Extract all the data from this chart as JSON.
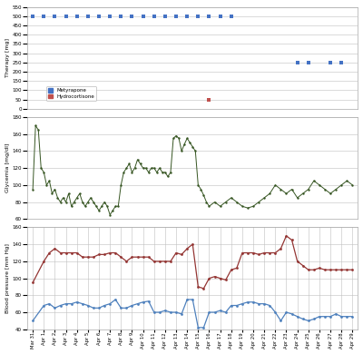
{
  "dates": [
    "Mar 31",
    "Apr 1",
    "Apr 2",
    "Apr 3",
    "Apr 4",
    "Apr 5",
    "Apr 6",
    "Apr 7",
    "Apr 8",
    "Apr 9",
    "Apr 10",
    "Apr 11",
    "Apr 12",
    "Apr 13",
    "Apr 14",
    "Apr 15",
    "Apr 16",
    "Apr 17",
    "Apr 18",
    "Apr 19",
    "Apr 20",
    "Apr 21",
    "Apr 22",
    "Apr 23",
    "Apr 24",
    "Apr 25",
    "Apr 26",
    "Apr 27",
    "Apr 28",
    "Apr 29"
  ],
  "metyrapone_x": [
    0,
    1,
    2,
    3,
    4,
    5,
    6,
    7,
    8,
    9,
    10,
    11,
    12,
    13,
    14,
    15,
    16,
    17,
    18,
    24,
    25,
    27,
    28
  ],
  "metyrapone_y": [
    500,
    500,
    500,
    500,
    500,
    500,
    500,
    500,
    500,
    500,
    500,
    500,
    500,
    500,
    500,
    500,
    500,
    500,
    500,
    250,
    250,
    250,
    250
  ],
  "hydrocortisone_x": [
    16
  ],
  "hydrocortisone_y": [
    50
  ],
  "glycemia_x": [
    0,
    0.25,
    0.5,
    0.75,
    1,
    1.25,
    1.5,
    1.75,
    2,
    2.25,
    2.5,
    2.75,
    3,
    3.25,
    3.5,
    3.75,
    4,
    4.25,
    4.5,
    4.75,
    5,
    5.25,
    5.5,
    5.75,
    6,
    6.25,
    6.5,
    6.75,
    7,
    7.25,
    7.5,
    7.75,
    8,
    8.25,
    8.5,
    8.75,
    9,
    9.25,
    9.5,
    9.75,
    10,
    10.25,
    10.5,
    10.75,
    11,
    11.25,
    11.5,
    11.75,
    12,
    12.25,
    12.5,
    12.75,
    13,
    13.25,
    13.5,
    13.75,
    14,
    14.25,
    14.5,
    14.75,
    15,
    15.25,
    15.5,
    15.75,
    16,
    16.5,
    17,
    17.5,
    18,
    18.5,
    19,
    19.5,
    20,
    20.5,
    21,
    21.5,
    22,
    22.5,
    23,
    23.5,
    24,
    24.5,
    25,
    25.5,
    26,
    26.5,
    27,
    27.5,
    28,
    28.5,
    29
  ],
  "glycemia_y": [
    95,
    170,
    165,
    120,
    115,
    100,
    105,
    90,
    95,
    85,
    80,
    85,
    80,
    90,
    75,
    80,
    85,
    90,
    80,
    75,
    80,
    85,
    80,
    75,
    70,
    75,
    80,
    75,
    65,
    70,
    75,
    75,
    100,
    115,
    120,
    125,
    115,
    120,
    130,
    125,
    120,
    120,
    115,
    120,
    120,
    115,
    120,
    115,
    115,
    110,
    115,
    155,
    158,
    155,
    140,
    148,
    155,
    150,
    145,
    140,
    100,
    95,
    88,
    80,
    75,
    80,
    75,
    80,
    85,
    80,
    75,
    73,
    75,
    80,
    85,
    90,
    100,
    95,
    90,
    95,
    85,
    90,
    95,
    105,
    100,
    95,
    90,
    95,
    100,
    105,
    100,
    95,
    85
  ],
  "bp_systolic_x": [
    0,
    1,
    1.5,
    2,
    2.5,
    3,
    3.5,
    4,
    4.5,
    5,
    5.5,
    6,
    6.5,
    7,
    7.5,
    8,
    8.5,
    9,
    9.5,
    10,
    10.5,
    11,
    11.5,
    12,
    12.5,
    13,
    13.5,
    14,
    14.5,
    15,
    15.5,
    16,
    16.5,
    17,
    17.5,
    18,
    18.5,
    19,
    19.5,
    20,
    20.5,
    21,
    21.5,
    22,
    22.5,
    23,
    23.5,
    24,
    24.5,
    25,
    25.5,
    26,
    26.5,
    27,
    27.5,
    28,
    28.5,
    29
  ],
  "bp_systolic_y": [
    95,
    120,
    130,
    135,
    130,
    130,
    130,
    130,
    125,
    125,
    125,
    128,
    128,
    130,
    130,
    125,
    120,
    125,
    125,
    125,
    125,
    120,
    120,
    120,
    120,
    130,
    128,
    135,
    140,
    90,
    88,
    100,
    102,
    100,
    98,
    110,
    112,
    130,
    130,
    130,
    128,
    130,
    130,
    130,
    135,
    150,
    145,
    120,
    115,
    110,
    110,
    112,
    110,
    110,
    110,
    110,
    110,
    110
  ],
  "bp_diastolic_x": [
    0,
    1,
    1.5,
    2,
    2.5,
    3,
    3.5,
    4,
    4.5,
    5,
    5.5,
    6,
    6.5,
    7,
    7.5,
    8,
    8.5,
    9,
    9.5,
    10,
    10.5,
    11,
    11.5,
    12,
    12.5,
    13,
    13.5,
    14,
    14.5,
    15,
    15.5,
    16,
    16.5,
    17,
    17.5,
    18,
    18.5,
    19,
    19.5,
    20,
    20.5,
    21,
    21.5,
    22,
    22.5,
    23,
    23.5,
    24,
    24.5,
    25,
    25.5,
    26,
    26.5,
    27,
    27.5,
    28,
    28.5,
    29
  ],
  "bp_diastolic_y": [
    50,
    68,
    70,
    65,
    68,
    70,
    70,
    72,
    70,
    68,
    65,
    65,
    68,
    70,
    75,
    65,
    65,
    68,
    70,
    72,
    73,
    60,
    60,
    62,
    60,
    60,
    58,
    75,
    75,
    42,
    42,
    60,
    60,
    62,
    60,
    68,
    68,
    70,
    72,
    72,
    70,
    70,
    68,
    60,
    50,
    60,
    58,
    55,
    52,
    50,
    52,
    55,
    55,
    55,
    58,
    55,
    55,
    55
  ],
  "therapy_color_metyrapone": "#4472c4",
  "therapy_color_hydrocortisone": "#c0504d",
  "glycemia_color": "#375623",
  "bp_systolic_color": "#943634",
  "bp_diastolic_color": "#4f81bd",
  "bg_color": "#ffffff",
  "grid_color": "#bfbfbf",
  "therapy_ylim": [
    0,
    550
  ],
  "therapy_yticks": [
    0,
    50,
    100,
    150,
    200,
    250,
    300,
    350,
    400,
    450,
    500,
    550
  ],
  "glycemia_ylim": [
    60,
    180
  ],
  "glycemia_yticks": [
    60,
    80,
    100,
    120,
    140,
    160,
    180
  ],
  "bp_ylim": [
    40,
    160
  ],
  "bp_yticks": [
    40,
    60,
    80,
    100,
    120,
    140,
    160
  ]
}
